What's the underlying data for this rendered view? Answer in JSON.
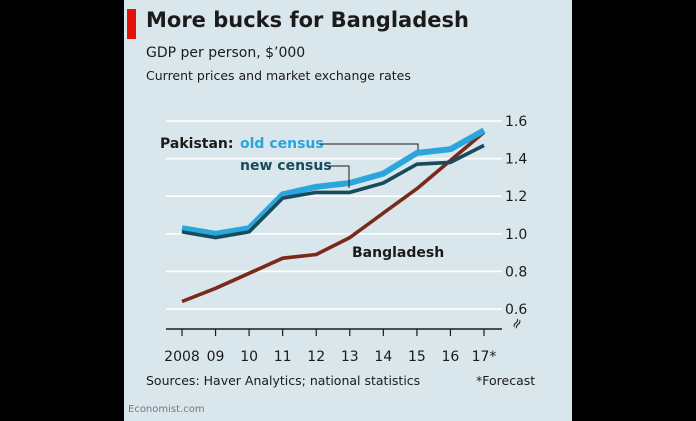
{
  "header": {
    "title": "More bucks for Bangladesh",
    "subtitle": "GDP per person, $’000",
    "subtitle2": "Current prices and market exchange rates"
  },
  "footer": {
    "source": "Sources: Haver Analytics; national statistics",
    "forecast_note": "*Forecast",
    "credit": "Economist.com"
  },
  "colors": {
    "background": "#d9e6eb",
    "brand_red": "#e3120b",
    "old_census": "#2aa6dd",
    "new_census": "#174b5e",
    "bangladesh": "#7a2a1a",
    "grid": "#ffffff",
    "text": "#1b1b1b"
  },
  "chart_data": {
    "type": "line",
    "x": [
      "2008",
      "09",
      "10",
      "11",
      "12",
      "13",
      "14",
      "15",
      "16",
      "17*"
    ],
    "ylim": [
      0.55,
      1.6
    ],
    "yticks": [
      0.6,
      0.8,
      1.0,
      1.2,
      1.4,
      1.6
    ],
    "ytick_labels": [
      "0.6",
      "0.8",
      "1.0",
      "1.2",
      "1.4",
      "1.6"
    ],
    "axis_break": "≈",
    "labels": {
      "pakistan_prefix": "Pakistan:",
      "old_census": "old census",
      "new_census": "new census",
      "bangladesh": "Bangladesh"
    },
    "series": [
      {
        "key": "old_census",
        "values": [
          1.03,
          1.0,
          1.03,
          1.21,
          1.25,
          1.27,
          1.32,
          1.43,
          1.45,
          1.55
        ]
      },
      {
        "key": "new_census",
        "values": [
          1.01,
          0.98,
          1.01,
          1.19,
          1.22,
          1.22,
          1.27,
          1.37,
          1.38,
          1.47
        ]
      },
      {
        "key": "bangladesh",
        "values": [
          0.64,
          0.71,
          0.79,
          0.87,
          0.89,
          0.98,
          1.11,
          1.24,
          1.39,
          1.54
        ]
      }
    ]
  }
}
